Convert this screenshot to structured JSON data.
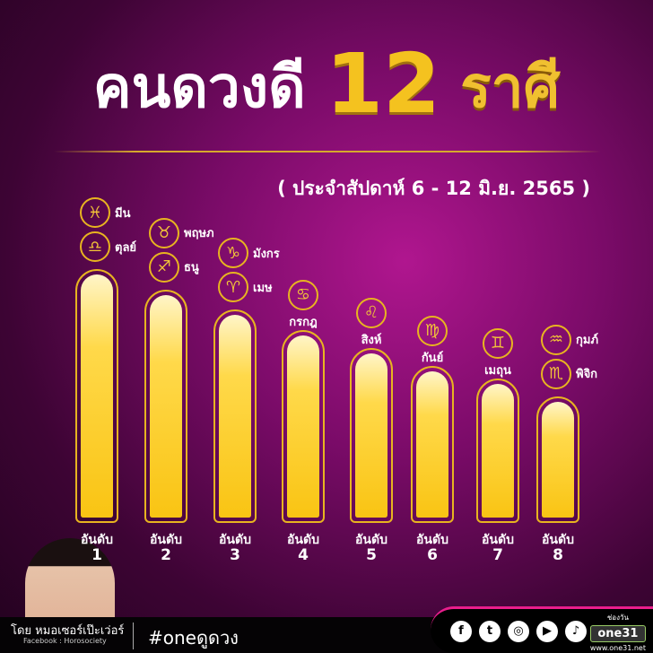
{
  "title": {
    "part1": "คนดวงดี",
    "number": "12",
    "part2": "ราศี"
  },
  "subtitle": "( ประจำสัปดาห์ 6 - 12 มิ.ย. 2565 )",
  "rank_label": "อันดับ",
  "ranks": [
    {
      "rank": "1",
      "bar_level": 1.0,
      "signs": [
        {
          "name": "มีน",
          "icon": "pisces-icon",
          "glyph": "♓"
        },
        {
          "name": "ตุลย์",
          "icon": "libra-icon",
          "glyph": "♎"
        }
      ]
    },
    {
      "rank": "2",
      "bar_level": 0.92,
      "signs": [
        {
          "name": "พฤษภ",
          "icon": "taurus-icon",
          "glyph": "♉"
        },
        {
          "name": "ธนู",
          "icon": "sagittarius-icon",
          "glyph": "♐"
        }
      ]
    },
    {
      "rank": "3",
      "bar_level": 0.84,
      "signs": [
        {
          "name": "มังกร",
          "icon": "capricorn-icon",
          "glyph": "♑"
        },
        {
          "name": "เมษ",
          "icon": "aries-icon",
          "glyph": "♈"
        }
      ]
    },
    {
      "rank": "4",
      "bar_level": 0.76,
      "signs": [
        {
          "name": "กรกฎ",
          "icon": "cancer-icon",
          "glyph": "♋"
        }
      ]
    },
    {
      "rank": "5",
      "bar_level": 0.69,
      "signs": [
        {
          "name": "สิงห์",
          "icon": "leo-icon",
          "glyph": "♌"
        }
      ]
    },
    {
      "rank": "6",
      "bar_level": 0.62,
      "signs": [
        {
          "name": "กันย์",
          "icon": "virgo-icon",
          "glyph": "♍"
        }
      ]
    },
    {
      "rank": "7",
      "bar_level": 0.57,
      "signs": [
        {
          "name": "เมถุน",
          "icon": "gemini-icon",
          "glyph": "♊"
        }
      ]
    },
    {
      "rank": "8",
      "bar_level": 0.5,
      "signs": [
        {
          "name": "กุมภ์",
          "icon": "aquarius-icon",
          "glyph": "♒"
        },
        {
          "name": "พิจิก",
          "icon": "scorpio-icon",
          "glyph": "♏"
        }
      ]
    }
  ],
  "footer": {
    "by": "โดย หมอเซอร์เป๊ะเว่อร์",
    "facebook": "Facebook : Horosociety",
    "hashtag": "#oneดูดวง",
    "social": [
      {
        "icon": "facebook-icon",
        "glyph": "f"
      },
      {
        "icon": "twitter-icon",
        "glyph": "t"
      },
      {
        "icon": "instagram-icon",
        "glyph": "◎"
      },
      {
        "icon": "youtube-icon",
        "glyph": "▶"
      },
      {
        "icon": "tiktok-icon",
        "glyph": "♪"
      }
    ],
    "channel_label": "ช่องวัน",
    "logo": "one31",
    "website": "www.one31.net"
  },
  "colors": {
    "gold": "#e8b420",
    "background": "#7a0b68"
  }
}
